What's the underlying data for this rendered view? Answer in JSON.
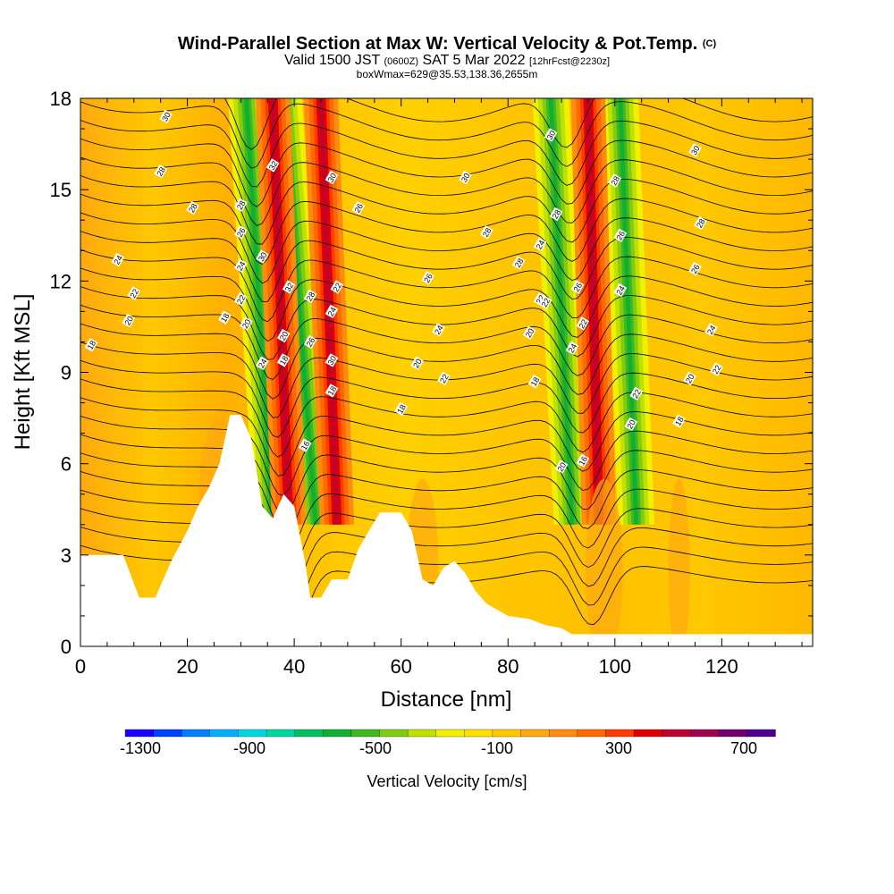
{
  "title": {
    "main": "Wind-Parallel Section at Max W: Vertical Velocity & Pot.Temp.",
    "copyright": "(C)",
    "valid_prefix": "Valid 1500 JST",
    "valid_utc": "(0600Z)",
    "valid_suffix": "SAT 5 Mar 2022",
    "forecast": "[12hrFcst@2230z]",
    "box_info": "boxWmax=629@35.53,138.36,2655m"
  },
  "colorbar": {
    "label": "Vertical Velocity [cm/s]",
    "tick_labels": [
      "-1300",
      "-900",
      "-500",
      "-100",
      "300",
      "700"
    ],
    "colors": [
      "#1a00ff",
      "#0040ff",
      "#0080ff",
      "#00b0ff",
      "#00d8e0",
      "#00d8a0",
      "#00c060",
      "#10b030",
      "#40b820",
      "#80cc10",
      "#c0e000",
      "#f0f000",
      "#ffe000",
      "#ffc800",
      "#ffaa10",
      "#ff8c10",
      "#ff6a00",
      "#ff3c00",
      "#e00000",
      "#c00030",
      "#a00050",
      "#700070",
      "#500090"
    ]
  },
  "chart_data": {
    "type": "heatmap",
    "xlabel": "Distance [nm]",
    "ylabel": "Height [Kft MSL]",
    "xlim": [
      0,
      137
    ],
    "ylim": [
      0,
      18
    ],
    "x_ticks": [
      0,
      20,
      40,
      60,
      80,
      100,
      120
    ],
    "y_ticks": [
      0,
      3,
      6,
      9,
      12,
      15,
      18
    ],
    "background_velocity": "-100 to 100 cm/s (yellow-orange)",
    "downdraft_bands": [
      {
        "x_bottom": 36,
        "x_top": 31,
        "velocity_min": -700
      },
      {
        "x_bottom": 44,
        "x_top": 38,
        "velocity_min": -700
      },
      {
        "x_bottom": 92,
        "x_top": 88,
        "velocity_min": -700
      },
      {
        "x_bottom": 104,
        "x_top": 101,
        "velocity_min": -500
      }
    ],
    "updraft_bands": [
      {
        "x_bottom": 39,
        "x_top": 36,
        "velocity_max": 700
      },
      {
        "x_bottom": 48,
        "x_top": 45,
        "velocity_max": 500
      },
      {
        "x_bottom": 97,
        "x_top": 95,
        "velocity_max": 700
      }
    ],
    "terrain": [
      [
        0,
        3.0
      ],
      [
        8,
        3.0
      ],
      [
        11,
        1.6
      ],
      [
        14,
        1.6
      ],
      [
        17,
        2.8
      ],
      [
        20,
        3.8
      ],
      [
        22,
        4.6
      ],
      [
        24,
        5.2
      ],
      [
        26,
        6.0
      ],
      [
        28,
        7.6
      ],
      [
        30,
        7.6
      ],
      [
        32,
        6.8
      ],
      [
        34,
        4.6
      ],
      [
        36,
        4.2
      ],
      [
        38,
        5.0
      ],
      [
        40,
        4.6
      ],
      [
        42,
        2.8
      ],
      [
        43,
        1.6
      ],
      [
        45,
        1.6
      ],
      [
        47,
        2.2
      ],
      [
        50,
        2.2
      ],
      [
        52,
        3.2
      ],
      [
        54,
        3.8
      ],
      [
        56,
        4.4
      ],
      [
        60,
        4.4
      ],
      [
        62,
        3.8
      ],
      [
        63,
        3.0
      ],
      [
        64,
        2.2
      ],
      [
        66,
        2.0
      ],
      [
        68,
        2.6
      ],
      [
        70,
        2.8
      ],
      [
        72,
        2.4
      ],
      [
        74,
        1.8
      ],
      [
        76,
        1.4
      ],
      [
        80,
        1.0
      ],
      [
        84,
        0.9
      ],
      [
        87,
        0.7
      ],
      [
        90,
        0.6
      ],
      [
        92,
        0.4
      ],
      [
        137,
        0.4
      ]
    ],
    "theta_contour_labels": [
      {
        "text": "30",
        "x": 16,
        "y": 17.4
      },
      {
        "text": "28",
        "x": 15,
        "y": 15.6
      },
      {
        "text": "28",
        "x": 21,
        "y": 14.4
      },
      {
        "text": "24",
        "x": 7,
        "y": 12.7
      },
      {
        "text": "22",
        "x": 10,
        "y": 11.6
      },
      {
        "text": "20",
        "x": 9,
        "y": 10.7
      },
      {
        "text": "18",
        "x": 2,
        "y": 9.9
      },
      {
        "text": "18",
        "x": 27,
        "y": 10.8
      },
      {
        "text": "32",
        "x": 36,
        "y": 15.8
      },
      {
        "text": "30",
        "x": 47,
        "y": 15.4
      },
      {
        "text": "28",
        "x": 30,
        "y": 14.5
      },
      {
        "text": "26",
        "x": 30,
        "y": 13.6
      },
      {
        "text": "24",
        "x": 30,
        "y": 12.5
      },
      {
        "text": "22",
        "x": 30,
        "y": 11.4
      },
      {
        "text": "20",
        "x": 31,
        "y": 10.6
      },
      {
        "text": "24",
        "x": 34,
        "y": 9.3
      },
      {
        "text": "30",
        "x": 34,
        "y": 12.8
      },
      {
        "text": "32",
        "x": 39,
        "y": 11.8
      },
      {
        "text": "20",
        "x": 38,
        "y": 10.2
      },
      {
        "text": "18",
        "x": 38,
        "y": 9.4
      },
      {
        "text": "28",
        "x": 43,
        "y": 11.5
      },
      {
        "text": "26",
        "x": 43,
        "y": 10.0
      },
      {
        "text": "22",
        "x": 48,
        "y": 11.8
      },
      {
        "text": "24",
        "x": 47,
        "y": 11.0
      },
      {
        "text": "30",
        "x": 47,
        "y": 9.4
      },
      {
        "text": "18",
        "x": 47,
        "y": 8.4
      },
      {
        "text": "16",
        "x": 42,
        "y": 6.6
      },
      {
        "text": "26",
        "x": 52,
        "y": 14.4
      },
      {
        "text": "30",
        "x": 72,
        "y": 15.4
      },
      {
        "text": "28",
        "x": 76,
        "y": 13.6
      },
      {
        "text": "26",
        "x": 65,
        "y": 12.1
      },
      {
        "text": "24",
        "x": 67,
        "y": 10.4
      },
      {
        "text": "20",
        "x": 63,
        "y": 9.3
      },
      {
        "text": "22",
        "x": 68,
        "y": 8.8
      },
      {
        "text": "18",
        "x": 60,
        "y": 7.8
      },
      {
        "text": "28",
        "x": 82,
        "y": 12.6
      },
      {
        "text": "24",
        "x": 86,
        "y": 13.2
      },
      {
        "text": "22",
        "x": 86,
        "y": 11.4
      },
      {
        "text": "20",
        "x": 84,
        "y": 10.3
      },
      {
        "text": "18",
        "x": 85,
        "y": 8.7
      },
      {
        "text": "30",
        "x": 88,
        "y": 16.8
      },
      {
        "text": "28",
        "x": 89,
        "y": 14.2
      },
      {
        "text": "22",
        "x": 87,
        "y": 11.3
      },
      {
        "text": "26",
        "x": 93,
        "y": 11.8
      },
      {
        "text": "22",
        "x": 94,
        "y": 10.6
      },
      {
        "text": "24",
        "x": 92,
        "y": 9.8
      },
      {
        "text": "20",
        "x": 90,
        "y": 5.9
      },
      {
        "text": "16",
        "x": 94,
        "y": 6.1
      },
      {
        "text": "28",
        "x": 100,
        "y": 15.3
      },
      {
        "text": "26",
        "x": 101,
        "y": 13.5
      },
      {
        "text": "24",
        "x": 101,
        "y": 11.7
      },
      {
        "text": "22",
        "x": 104,
        "y": 8.3
      },
      {
        "text": "20",
        "x": 103,
        "y": 7.3
      },
      {
        "text": "30",
        "x": 115,
        "y": 16.3
      },
      {
        "text": "28",
        "x": 116,
        "y": 13.9
      },
      {
        "text": "26",
        "x": 115,
        "y": 12.4
      },
      {
        "text": "24",
        "x": 118,
        "y": 10.4
      },
      {
        "text": "22",
        "x": 119,
        "y": 9.1
      },
      {
        "text": "20",
        "x": 114,
        "y": 8.8
      },
      {
        "text": "18",
        "x": 112,
        "y": 7.4
      }
    ]
  }
}
